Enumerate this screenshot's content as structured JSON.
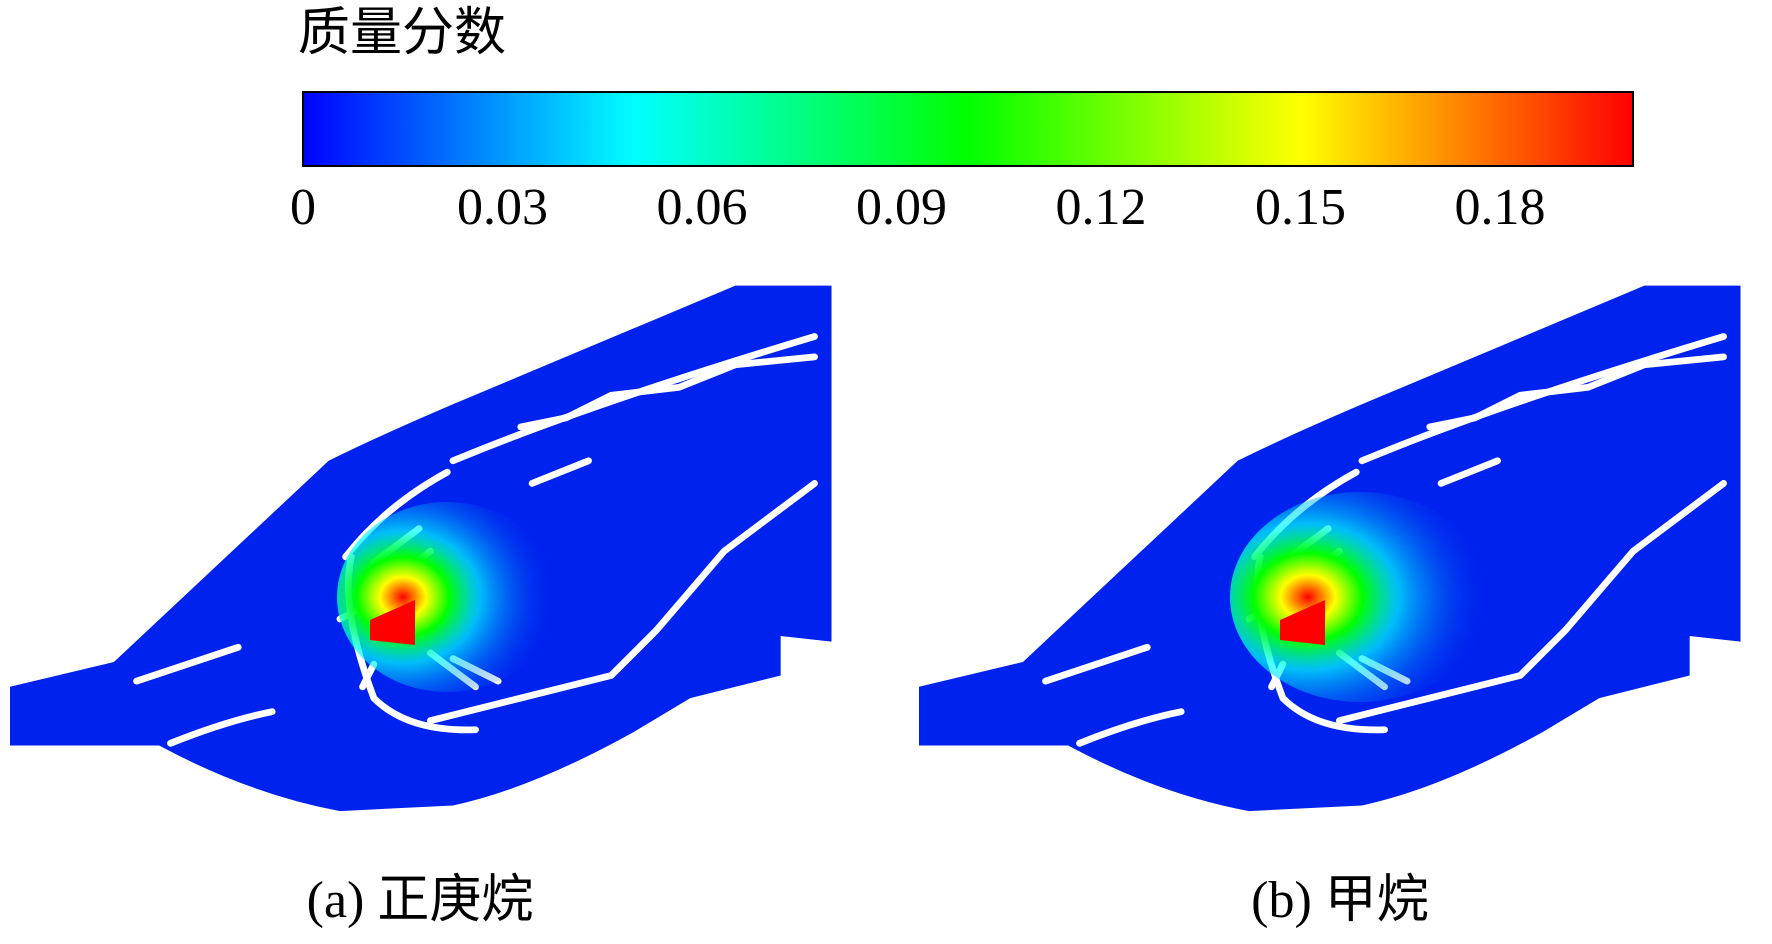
{
  "colorbar": {
    "title": "质量分数",
    "lim": [
      0,
      0.2
    ],
    "ticks": [
      0,
      0.03,
      0.06,
      0.09,
      0.12,
      0.15,
      0.18
    ],
    "colormap": [
      "#0000ff",
      "#00ffff",
      "#00ff00",
      "#ffff00",
      "#ff0000"
    ]
  },
  "panels": [
    {
      "label": "(a) 正庚烷"
    },
    {
      "label": "(b) 甲烷"
    }
  ]
}
